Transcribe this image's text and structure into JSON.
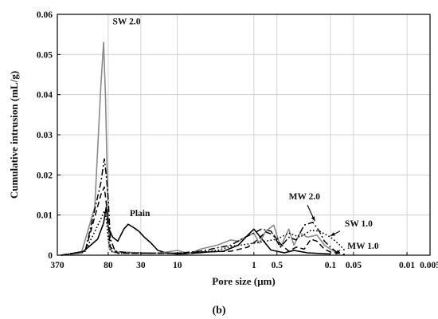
{
  "chart_data": {
    "type": "line",
    "title": "",
    "xlabel": "Pore size (µm)",
    "ylabel": "Cumulative intrusion (mL/g)",
    "caption": "(b)",
    "x_scale": "log",
    "x_reversed": true,
    "xlim": [
      370,
      0.005
    ],
    "ylim": [
      0,
      0.06
    ],
    "grid": true,
    "x_ticks": [
      {
        "value": 370,
        "label": "370"
      },
      {
        "value": 80,
        "label": "80"
      },
      {
        "value": 30,
        "label": "30"
      },
      {
        "value": 10,
        "label": "10"
      },
      {
        "value": 1,
        "label": "1"
      },
      {
        "value": 0.5,
        "label": "0.5"
      },
      {
        "value": 0.1,
        "label": "0.1"
      },
      {
        "value": 0.05,
        "label": "0.05"
      },
      {
        "value": 0.01,
        "label": "0.01"
      },
      {
        "value": 0.005,
        "label": "0.005"
      }
    ],
    "x_grid": [
      370,
      80,
      30,
      10,
      1,
      0.5,
      0.1,
      0.05,
      0.01,
      0.005
    ],
    "y_ticks": [
      {
        "value": 0,
        "label": "0"
      },
      {
        "value": 0.01,
        "label": "0.01"
      },
      {
        "value": 0.02,
        "label": "0.02"
      },
      {
        "value": 0.03,
        "label": "0.03"
      },
      {
        "value": 0.04,
        "label": "0.04"
      },
      {
        "value": 0.05,
        "label": "0.05"
      },
      {
        "value": 0.06,
        "label": "0.06"
      }
    ],
    "series": [
      {
        "name": "Plain",
        "color": "#000000",
        "style": "solid",
        "width": 1.6,
        "x": [
          330,
          180,
          110,
          92,
          85,
          80,
          70,
          60,
          50,
          44,
          38,
          32,
          27,
          22,
          18,
          14,
          10,
          7,
          4,
          2.5,
          1.6,
          1.2,
          1.0,
          0.8,
          0.6,
          0.4,
          0.3,
          0.2,
          0.1
        ],
        "y": [
          0,
          0.0005,
          0.004,
          0.008,
          0.012,
          0.007,
          0.0045,
          0.0035,
          0.0065,
          0.0077,
          0.007,
          0.006,
          0.0045,
          0.003,
          0.0012,
          0.0006,
          0.0003,
          0.0004,
          0.0008,
          0.001,
          0.0025,
          0.005,
          0.0065,
          0.0042,
          0.0013,
          0.0006,
          0.0012,
          0.0006,
          0.0003
        ]
      },
      {
        "name": "SW 2.0",
        "color": "#8a8a8a",
        "style": "solid",
        "width": 1.6,
        "x": [
          330,
          180,
          120,
          100,
          92,
          87,
          83,
          78,
          70,
          50,
          30,
          18,
          10,
          7,
          5,
          3,
          2,
          1.6,
          1.3,
          1.0,
          0.85,
          0.7,
          0.55,
          0.45,
          0.35,
          0.3,
          0.25,
          0.2,
          0.15,
          0.12,
          0.1,
          0.08
        ],
        "y": [
          0,
          0.0005,
          0.012,
          0.042,
          0.053,
          0.04,
          0.022,
          0.002,
          0.0008,
          0.0008,
          0.0006,
          0.0005,
          0.0012,
          0.0004,
          0.0015,
          0.0025,
          0.0038,
          0.0035,
          0.0045,
          0.0055,
          0.003,
          0.006,
          0.0075,
          0.002,
          0.0065,
          0.0025,
          0.0055,
          0.0045,
          0.005,
          0.0025,
          0.0015,
          0.0005
        ]
      },
      {
        "name": "MW 2.0",
        "color": "#000000",
        "style": "dashdot",
        "width": 1.5,
        "x": [
          330,
          160,
          100,
          90,
          85,
          80,
          75,
          65,
          40,
          20,
          10,
          5,
          2,
          1.3,
          1.0,
          0.8,
          0.6,
          0.45,
          0.35,
          0.28,
          0.22,
          0.17,
          0.14,
          0.12,
          0.1,
          0.08
        ],
        "y": [
          0,
          0.001,
          0.018,
          0.024,
          0.02,
          0.014,
          0.004,
          0.001,
          0.0005,
          0.0005,
          0.0005,
          0.001,
          0.0025,
          0.0045,
          0.0055,
          0.0065,
          0.006,
          0.002,
          0.0045,
          0.0038,
          0.0075,
          0.0082,
          0.006,
          0.0035,
          0.002,
          0.0005
        ]
      },
      {
        "name": "SW 1.0",
        "color": "#000000",
        "style": "dotted",
        "width": 1.6,
        "x": [
          330,
          160,
          100,
          90,
          85,
          80,
          75,
          60,
          30,
          10,
          5,
          3,
          2,
          1.5,
          1.0,
          0.7,
          0.5,
          0.35,
          0.25,
          0.18,
          0.14,
          0.1,
          0.08,
          0.065
        ],
        "y": [
          0,
          0.001,
          0.009,
          0.011,
          0.009,
          0.004,
          0.001,
          0.0005,
          0.0005,
          0.0005,
          0.0008,
          0.0012,
          0.0022,
          0.0025,
          0.003,
          0.0035,
          0.004,
          0.0055,
          0.0045,
          0.0062,
          0.006,
          0.0045,
          0.003,
          0.0012
        ]
      },
      {
        "name": "MW 1.0",
        "color": "#000000",
        "style": "dashed",
        "width": 1.5,
        "x": [
          330,
          160,
          100,
          90,
          85,
          80,
          75,
          60,
          30,
          10,
          5,
          2,
          1.2,
          0.9,
          0.7,
          0.55,
          0.45,
          0.35,
          0.28,
          0.22,
          0.18,
          0.15,
          0.12,
          0.1,
          0.08,
          0.065
        ],
        "y": [
          0,
          0.001,
          0.015,
          0.017,
          0.013,
          0.008,
          0.002,
          0.0005,
          0.0005,
          0.0005,
          0.0008,
          0.001,
          0.002,
          0.0038,
          0.0058,
          0.005,
          0.0028,
          0.001,
          0.002,
          0.0015,
          0.004,
          0.0035,
          0.0015,
          0.0008,
          0.0005,
          0.0002
        ]
      }
    ],
    "labels": [
      {
        "text": "SW 2.0",
        "color": "#8a8a8a",
        "x": 70,
        "y": 0.0575
      },
      {
        "text": "Plain",
        "color": "#111111",
        "x": 42,
        "y": 0.0097
      },
      {
        "text": "MW 2.0",
        "color": "#111111",
        "x": 0.35,
        "y": 0.0139
      },
      {
        "text": "SW 1.0",
        "color": "#111111",
        "x": 0.065,
        "y": 0.0072
      },
      {
        "text": "MW 1.0",
        "color": "#111111",
        "x": 0.06,
        "y": 0.0016
      }
    ],
    "arrows": [
      {
        "for": "MW 2.0",
        "from": [
          0.2,
          0.0125
        ],
        "to": [
          0.16,
          0.0085
        ]
      },
      {
        "for": "SW 1.0",
        "from": [
          0.075,
          0.006
        ],
        "to": [
          0.1,
          0.0048
        ]
      },
      {
        "for": "MW 1.0",
        "from": [
          0.075,
          0.0013
        ],
        "to": [
          0.085,
          0.0002
        ]
      }
    ]
  }
}
